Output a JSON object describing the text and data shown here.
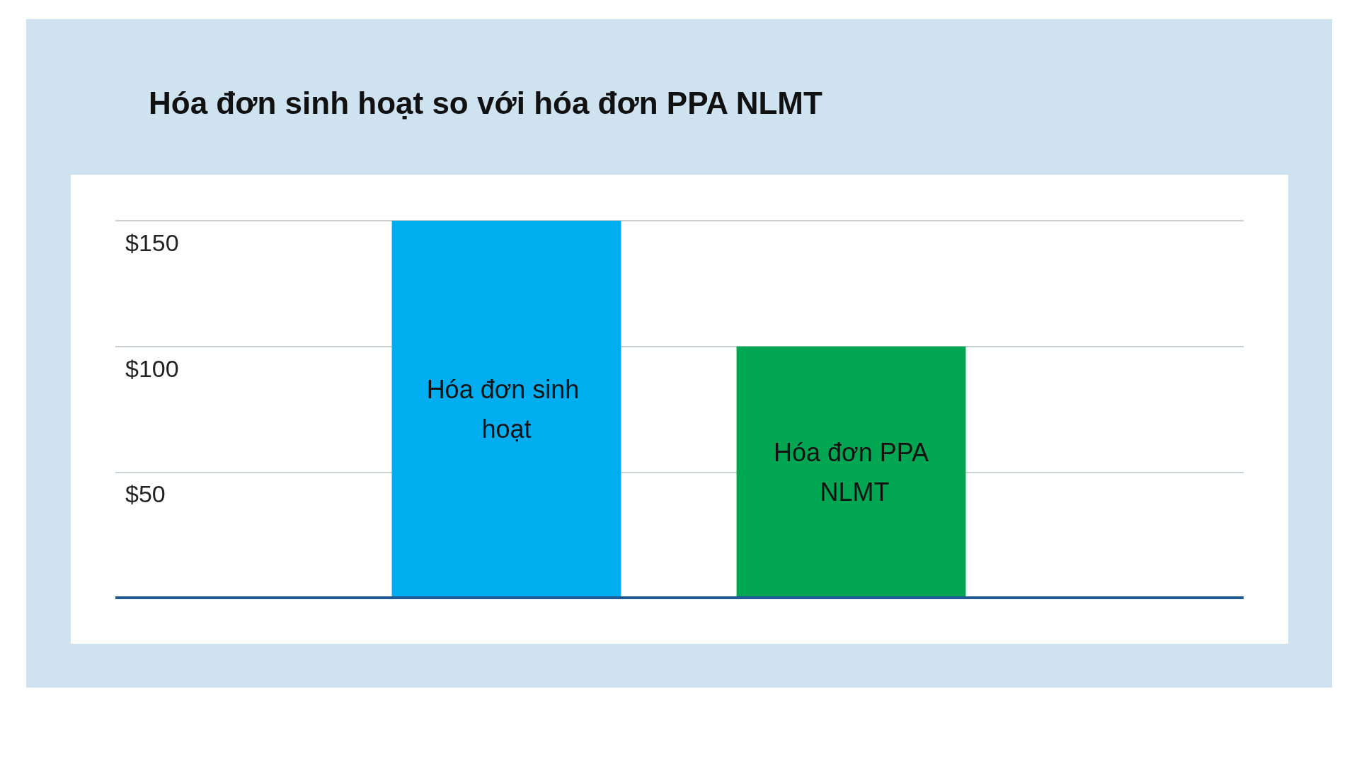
{
  "chart_data": {
    "type": "bar",
    "title": "Hóa đơn sinh hoạt so với hóa đơn PPA NLMT",
    "categories": [
      "Hóa đơn sinh hoạt",
      "Hóa đơn PPA NLMT"
    ],
    "values": [
      150,
      100
    ],
    "colors": [
      "#00adee",
      "#00a651"
    ],
    "ylim": [
      0,
      150
    ],
    "yticks": [
      {
        "value": 50,
        "label": "$50"
      },
      {
        "value": 100,
        "label": "$100"
      },
      {
        "value": 150,
        "label": "$150"
      }
    ],
    "grid": "y",
    "tick_labels": "y"
  }
}
